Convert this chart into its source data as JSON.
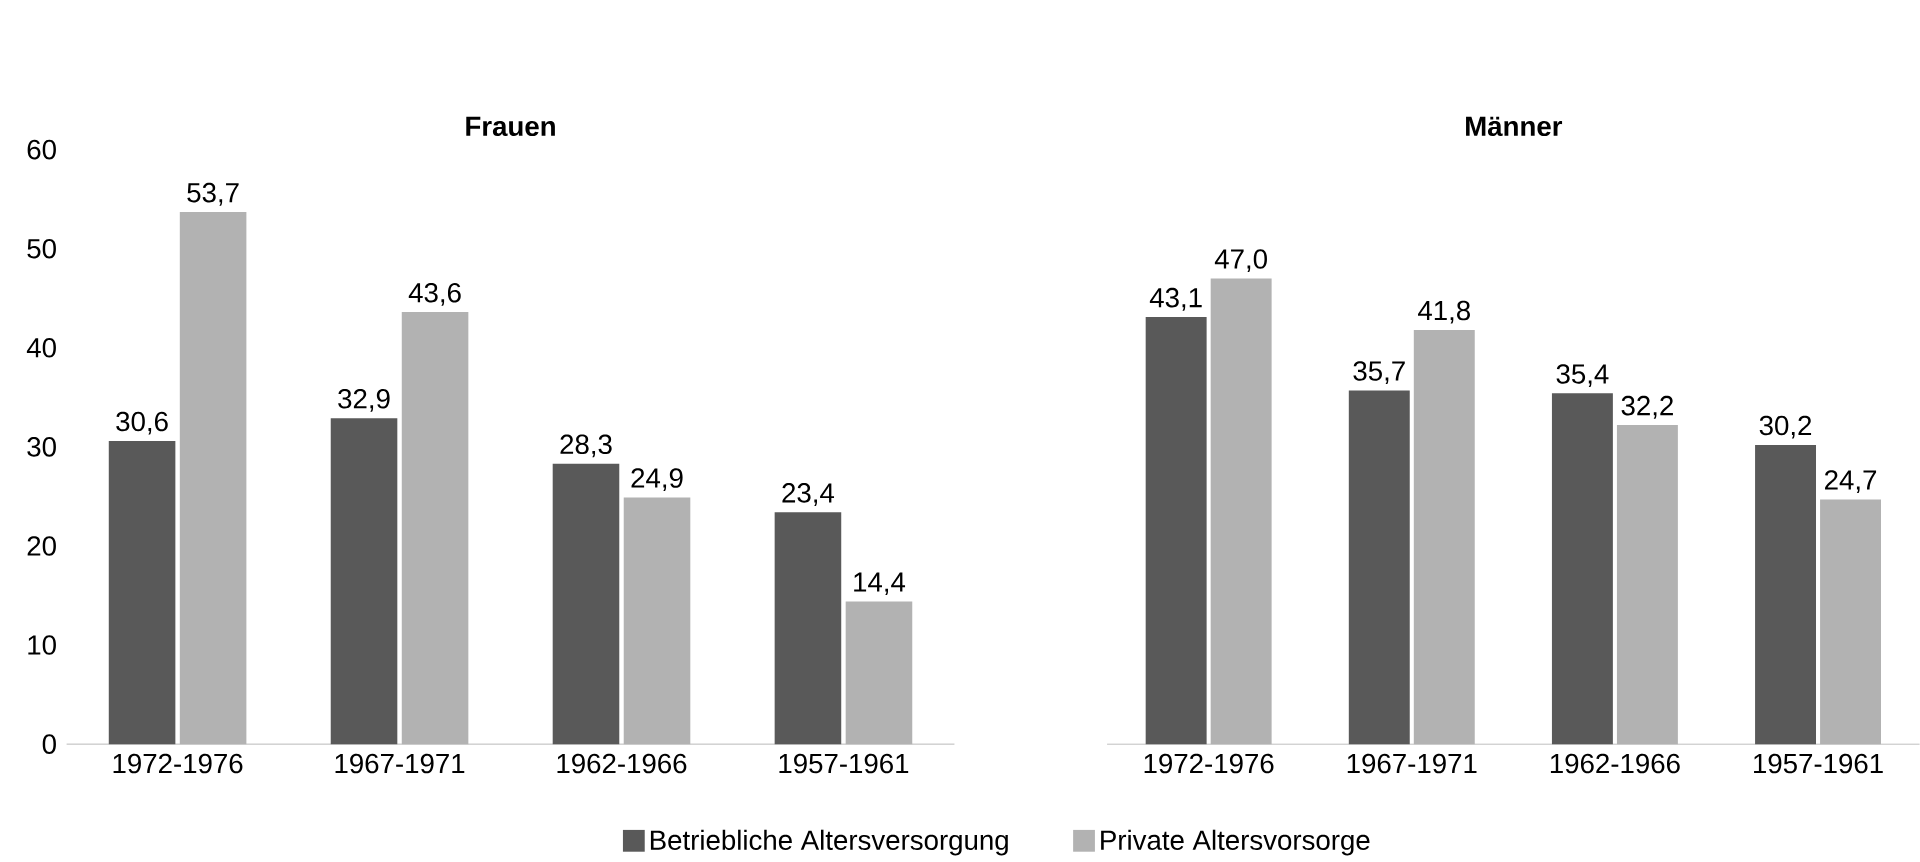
{
  "chart_data": [
    {
      "type": "bar",
      "title": "Frauen",
      "categories": [
        "1972-1976",
        "1967-1971",
        "1962-1966",
        "1957-1961"
      ],
      "series": [
        {
          "name": "Betriebliche Altersversorgung",
          "color": "#595959",
          "values": [
            30.6,
            32.9,
            28.3,
            23.4
          ],
          "value_labels": [
            "30,6",
            "32,9",
            "28,3",
            "23,4"
          ]
        },
        {
          "name": "Private Altersvorsorge",
          "color": "#b2b2b2",
          "values": [
            53.7,
            43.6,
            24.9,
            14.4
          ],
          "value_labels": [
            "53,7",
            "43,6",
            "24,9",
            "14,4"
          ]
        }
      ],
      "ylim": [
        0,
        60
      ],
      "yticks": [
        0,
        10,
        20,
        30,
        40,
        50,
        60
      ],
      "grid": false,
      "legend": "bottom"
    },
    {
      "type": "bar",
      "title": "Männer",
      "categories": [
        "1972-1976",
        "1967-1971",
        "1962-1966",
        "1957-1961"
      ],
      "series": [
        {
          "color": "#595959",
          "values": [
            43.1,
            35.7,
            35.4,
            30.2
          ],
          "value_labels": [
            "43,1",
            "35,7",
            "35,4",
            "30,2"
          ]
        },
        {
          "color": "#b2b2b2",
          "values": [
            47.0,
            41.8,
            32.2,
            24.7
          ],
          "value_labels": [
            "47,0",
            "41,8",
            "32,2",
            "24,7"
          ]
        }
      ],
      "ylim": [
        0,
        60
      ],
      "tick_labels": "x",
      "grid": false,
      "legend": false
    }
  ]
}
